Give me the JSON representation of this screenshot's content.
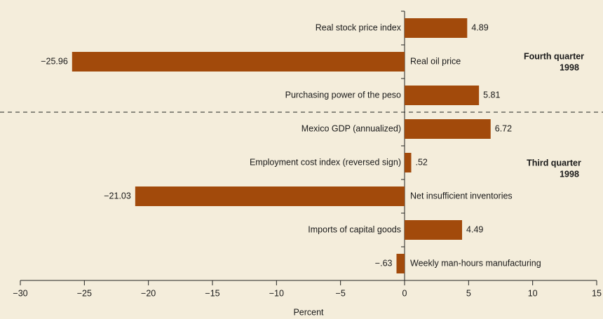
{
  "chart_data": {
    "type": "hbar",
    "categories": [
      "Real stock price index",
      "Real oil price",
      "Purchasing power of the peso",
      "Mexico GDP (annualized)",
      "Employment cost index (reversed sign)",
      "Net insufficient inventories",
      "Imports of capital goods",
      "Weekly man-hours manufacturing"
    ],
    "values": [
      4.89,
      -25.96,
      5.81,
      6.72,
      0.52,
      -21.03,
      4.49,
      -0.63
    ],
    "value_labels": [
      "4.89",
      "−25.96",
      "5.81",
      "6.72",
      ".52",
      "−21.03",
      "4.49",
      "−.63"
    ],
    "color": "#a24a0b",
    "xlim": [
      -30,
      15
    ],
    "xticks": [
      {
        "value": -30,
        "label": "−30"
      },
      {
        "value": -25,
        "label": "−25"
      },
      {
        "value": -20,
        "label": "−20"
      },
      {
        "value": -15,
        "label": "−15"
      },
      {
        "value": -10,
        "label": "−10"
      },
      {
        "value": -5,
        "label": "−5"
      },
      0,
      5,
      10,
      15
    ],
    "xlabel": "Percent",
    "groups": [
      {
        "label": [
          "Fourth quarter",
          "1998"
        ]
      },
      {
        "label": [
          "Third quarter",
          "1998"
        ]
      }
    ]
  }
}
